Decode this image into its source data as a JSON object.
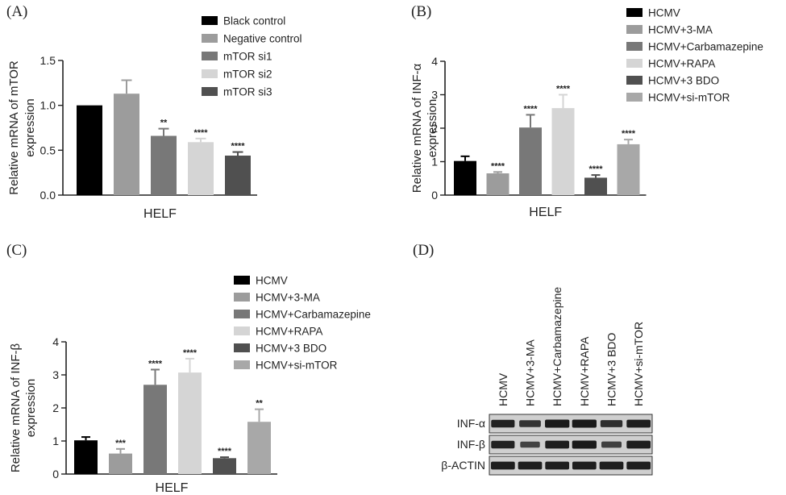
{
  "colors": {
    "series": [
      "#000000",
      "#9c9c9c",
      "#787878",
      "#d5d5d5",
      "#505050",
      "#a8a8a8"
    ],
    "axis": "#222222",
    "blot_bg": "#cfcfcf",
    "band": "#1a1a1a"
  },
  "chart_data": [
    {
      "panel": "(A)",
      "type": "bar",
      "ylabel": [
        "Relative mRNA of mTOR",
        "expression"
      ],
      "xlabel": "HELF",
      "ylim": [
        0,
        1.5
      ],
      "yticks": [
        "0.0",
        "0.5",
        "1.0",
        "1.5"
      ],
      "ytick_values": [
        0,
        0.5,
        1.0,
        1.5
      ],
      "series": [
        {
          "name": "Black control",
          "value": 1.0,
          "error": 0.0,
          "sig": ""
        },
        {
          "name": "Negative control",
          "value": 1.13,
          "error": 0.15,
          "sig": ""
        },
        {
          "name": "mTOR si1",
          "value": 0.66,
          "error": 0.08,
          "sig": "**"
        },
        {
          "name": "mTOR si2",
          "value": 0.59,
          "error": 0.04,
          "sig": "****"
        },
        {
          "name": "mTOR si3",
          "value": 0.44,
          "error": 0.04,
          "sig": "****"
        }
      ],
      "legend_position": "top-right"
    },
    {
      "panel": "(B)",
      "type": "bar",
      "ylabel": [
        "Relative mRNA of INF-α",
        "expression"
      ],
      "xlabel": "HELF",
      "ylim": [
        0,
        4
      ],
      "yticks": [
        "0",
        "1",
        "2",
        "3",
        "4"
      ],
      "ytick_values": [
        0,
        1,
        2,
        3,
        4
      ],
      "series": [
        {
          "name": "HCMV",
          "value": 1.02,
          "error": 0.14,
          "sig": ""
        },
        {
          "name": "HCMV+3-MA",
          "value": 0.65,
          "error": 0.04,
          "sig": "****"
        },
        {
          "name": "HCMV+Carbamazepine",
          "value": 2.02,
          "error": 0.38,
          "sig": "****"
        },
        {
          "name": "HCMV+RAPA",
          "value": 2.6,
          "error": 0.4,
          "sig": "****"
        },
        {
          "name": "HCMV+3 BDO",
          "value": 0.52,
          "error": 0.08,
          "sig": "****"
        },
        {
          "name": "HCMV+si-mTOR",
          "value": 1.52,
          "error": 0.14,
          "sig": "****"
        }
      ],
      "legend_position": "top-right"
    },
    {
      "panel": "(C)",
      "type": "bar",
      "ylabel": [
        "Relative mRNA of INF-β",
        "expression"
      ],
      "xlabel": "HELF",
      "ylim": [
        0,
        4
      ],
      "yticks": [
        "0",
        "1",
        "2",
        "3",
        "4"
      ],
      "ytick_values": [
        0,
        1,
        2,
        3,
        4
      ],
      "series": [
        {
          "name": "HCMV",
          "value": 1.02,
          "error": 0.1,
          "sig": ""
        },
        {
          "name": "HCMV+3-MA",
          "value": 0.62,
          "error": 0.14,
          "sig": "***"
        },
        {
          "name": "HCMV+Carbamazepine",
          "value": 2.7,
          "error": 0.46,
          "sig": "****"
        },
        {
          "name": "HCMV+RAPA",
          "value": 3.07,
          "error": 0.42,
          "sig": "****"
        },
        {
          "name": "HCMV+3 BDO",
          "value": 0.48,
          "error": 0.03,
          "sig": "****"
        },
        {
          "name": "HCMV+si-mTOR",
          "value": 1.58,
          "error": 0.38,
          "sig": "**"
        }
      ],
      "legend_position": "top-right"
    }
  ],
  "blot": {
    "panel": "(D)",
    "lanes": [
      "HCMV",
      "HCMV+3-MA",
      "HCMV+Carbamazepine",
      "HCMV+RAPA",
      "HCMV+3 BDO",
      "HCMV+si-mTOR"
    ],
    "rows": [
      {
        "label": "INF-α",
        "intensity": [
          0.9,
          0.7,
          1.0,
          1.0,
          0.75,
          0.95
        ]
      },
      {
        "label": "INF-β",
        "intensity": [
          0.9,
          0.5,
          0.95,
          1.0,
          0.55,
          0.95
        ]
      },
      {
        "label": "β-ACTIN",
        "intensity": [
          0.95,
          0.95,
          0.95,
          0.95,
          0.95,
          0.95
        ]
      }
    ]
  }
}
